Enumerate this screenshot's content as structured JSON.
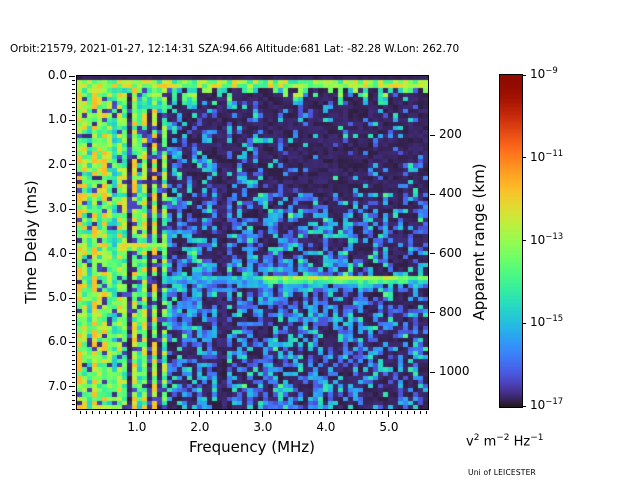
{
  "title": "Orbit:21579, 2021-01-27, 12:14:31 SZA:94.66 Altitude:681 Lat: -82.28 W.Lon: 262.70",
  "credit": "Uni of LEICESTER",
  "chart_data": {
    "type": "heatmap",
    "title": "Orbit:21579, 2021-01-27, 12:14:31 SZA:94.66 Altitude:681 Lat: -82.28 W.Lon: 262.70",
    "xlabel": "Frequency (MHz)",
    "ylabel": "Time Delay (ms)",
    "y2label": "Apparent range (km)",
    "x_range": [
      0.05,
      5.62
    ],
    "y_range": [
      0,
      7.5
    ],
    "x_ticks": [
      1.0,
      2.0,
      3.0,
      4.0,
      5.0
    ],
    "x_tick_labels": [
      "1.0",
      "2.0",
      "3.0",
      "4.0",
      "5.0"
    ],
    "x_minor_step": 0.1,
    "y_ticks": [
      0.0,
      1.0,
      2.0,
      3.0,
      4.0,
      5.0,
      6.0,
      7.0
    ],
    "y_tick_labels": [
      "0.0",
      "1.0",
      "2.0",
      "3.0",
      "4.0",
      "5.0",
      "6.0",
      "7.0"
    ],
    "y_minor_step": 0.1,
    "y2_ticks_km": [
      200,
      400,
      600,
      800,
      1000
    ],
    "y2_tick_labels": [
      "200",
      "400",
      "600",
      "800",
      "1000"
    ],
    "km_per_ms": 150,
    "grid": false,
    "colorbar": {
      "colormap": "turbo",
      "scale": "log",
      "tick_exponents": [
        -9,
        -11,
        -13,
        -15,
        -17
      ],
      "unit_parts": [
        [
          "v",
          "2"
        ],
        [
          "m",
          "−2"
        ],
        [
          "Hz",
          "−1"
        ]
      ]
    },
    "features": {
      "top_ionospheric_band": {
        "delay_ms": [
          0.1,
          0.35
        ],
        "freq_range": [
          0.05,
          5.62
        ]
      },
      "low_freq_interference_stripes": {
        "freq_range": [
          0.05,
          1.47
        ],
        "full_height": true
      },
      "ionospheric_echo_line": {
        "delay_ms": 3.8,
        "freq_range": [
          0.66,
          1.5
        ]
      },
      "surface_reflection_band": {
        "delay_ms": 4.6,
        "strong_freq_range": [
          3.0,
          5.6
        ],
        "weak_freq_range": [
          1.5,
          3.0
        ]
      },
      "dark_interference_gap_mhz": [
        2.3,
        2.45
      ],
      "background": "sparse blue noise speckle, sparser at top-right"
    },
    "gen": {
      "rows": 80,
      "cols": 70,
      "seed": 20210127,
      "stripe_max_freq": 1.47,
      "bright_stripe_lines": [
        [
          0.3,
          0.7
        ],
        [
          0.52,
          0.66
        ],
        [
          0.95,
          0.62
        ],
        [
          1.3,
          0.64
        ]
      ],
      "dark_band": [
        2.3,
        2.45
      ],
      "echo_row": 40,
      "surface_rows": [
        48,
        49
      ],
      "band_rows": [
        1,
        2,
        3
      ]
    }
  }
}
